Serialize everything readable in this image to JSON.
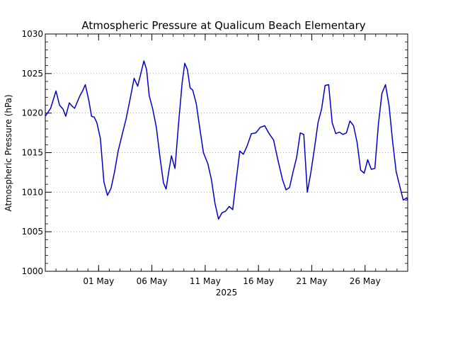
{
  "chart_data": {
    "type": "line",
    "title": "Atmospheric Pressure at Qualicum Beach Elementary",
    "xlabel": "2025",
    "ylabel": "Atmospheric Pressure (hPa)",
    "xlim": [
      "2025-04-26",
      "2025-05-30"
    ],
    "ylim": [
      1000,
      1030
    ],
    "yticks": [
      1000,
      1005,
      1010,
      1015,
      1020,
      1025,
      1030
    ],
    "xtick_dates": [
      "2025-05-01",
      "2025-05-06",
      "2025-05-11",
      "2025-05-16",
      "2025-05-21",
      "2025-05-26"
    ],
    "xtick_labels": [
      "01 May",
      "06 May",
      "11 May",
      "16 May",
      "21 May",
      "26 May"
    ],
    "grid": "horizontal-dotted",
    "line_color": "#0000cc",
    "series": [
      {
        "x": [
          "2025-04-26 00:00",
          "2025-04-26 12:00",
          "2025-04-27 00:00",
          "2025-04-27 08:00",
          "2025-04-27 16:00",
          "2025-04-27 22:00",
          "2025-04-28 06:00",
          "2025-04-28 12:00",
          "2025-04-28 18:00",
          "2025-04-29 06:00",
          "2025-04-29 12:00",
          "2025-04-29 18:00",
          "2025-04-30 02:00",
          "2025-04-30 08:00",
          "2025-04-30 14:00",
          "2025-04-30 20:00",
          "2025-05-01 04:00",
          "2025-05-01 12:00",
          "2025-05-01 20:00",
          "2025-05-02 04:00",
          "2025-05-02 12:00",
          "2025-05-02 20:00",
          "2025-05-03 06:00",
          "2025-05-03 14:00",
          "2025-05-03 22:00",
          "2025-05-04 08:00",
          "2025-05-04 16:00",
          "2025-05-05 00:00",
          "2025-05-05 06:00",
          "2025-05-05 12:00",
          "2025-05-05 18:00",
          "2025-05-06 02:00",
          "2025-05-06 10:00",
          "2025-05-06 18:00",
          "2025-05-07 02:00",
          "2025-05-07 08:00",
          "2025-05-07 14:00",
          "2025-05-07 20:00",
          "2025-05-08 04:00",
          "2025-05-08 12:00",
          "2025-05-08 20:00",
          "2025-05-09 02:00",
          "2025-05-09 08:00",
          "2025-05-09 14:00",
          "2025-05-09 20:00",
          "2025-05-10 04:00",
          "2025-05-10 12:00",
          "2025-05-10 20:00",
          "2025-05-11 06:00",
          "2025-05-11 14:00",
          "2025-05-11 22:00",
          "2025-05-12 06:00",
          "2025-05-12 14:00",
          "2025-05-12 22:00",
          "2025-05-13 06:00",
          "2025-05-13 14:00",
          "2025-05-13 22:00",
          "2025-05-14 06:00",
          "2025-05-14 14:00",
          "2025-05-14 22:00",
          "2025-05-15 08:00",
          "2025-05-15 18:00",
          "2025-05-16 04:00",
          "2025-05-16 14:00",
          "2025-05-17 00:00",
          "2025-05-17 10:00",
          "2025-05-17 20:00",
          "2025-05-18 06:00",
          "2025-05-18 14:00",
          "2025-05-18 22:00",
          "2025-05-19 06:00",
          "2025-05-19 14:00",
          "2025-05-19 22:00",
          "2025-05-20 06:00",
          "2025-05-20 14:00",
          "2025-05-20 22:00",
          "2025-05-21 06:00",
          "2025-05-21 14:00",
          "2025-05-21 22:00",
          "2025-05-22 06:00",
          "2025-05-22 14:00",
          "2025-05-22 22:00",
          "2025-05-23 06:00",
          "2025-05-23 14:00",
          "2025-05-23 22:00",
          "2025-05-24 06:00",
          "2025-05-24 14:00",
          "2025-05-24 22:00",
          "2025-05-25 06:00",
          "2025-05-25 14:00",
          "2025-05-25 22:00",
          "2025-05-26 06:00",
          "2025-05-26 14:00",
          "2025-05-26 22:00",
          "2025-05-27 06:00",
          "2025-05-27 14:00",
          "2025-05-27 22:00",
          "2025-05-28 06:00",
          "2025-05-28 14:00",
          "2025-05-28 22:00",
          "2025-05-29 06:00",
          "2025-05-29 14:00",
          "2025-05-29 22:00",
          "2025-05-30 00:00"
        ],
        "y": [
          1019.6,
          1020.6,
          1022.8,
          1021.0,
          1020.5,
          1019.6,
          1021.3,
          1020.9,
          1020.6,
          1022.2,
          1022.8,
          1023.6,
          1021.6,
          1019.6,
          1019.5,
          1018.8,
          1016.8,
          1011.3,
          1009.6,
          1010.5,
          1012.6,
          1015.2,
          1017.5,
          1019.3,
          1021.5,
          1024.4,
          1023.4,
          1025.2,
          1026.6,
          1025.5,
          1022.2,
          1020.5,
          1018.2,
          1014.5,
          1011.2,
          1010.4,
          1012.6,
          1014.6,
          1013.0,
          1018.6,
          1023.8,
          1026.3,
          1025.5,
          1023.2,
          1022.9,
          1021.2,
          1018.0,
          1015.0,
          1013.6,
          1011.6,
          1008.6,
          1006.6,
          1007.4,
          1007.6,
          1008.2,
          1007.8,
          1011.6,
          1015.2,
          1014.8,
          1015.8,
          1017.4,
          1017.5,
          1018.2,
          1018.4,
          1017.4,
          1016.6,
          1014.0,
          1011.6,
          1010.3,
          1010.6,
          1012.6,
          1014.4,
          1017.5,
          1017.3,
          1010.0,
          1012.5,
          1015.5,
          1018.8,
          1020.5,
          1023.5,
          1023.6,
          1018.8,
          1017.4,
          1017.6,
          1017.3,
          1017.5,
          1019.0,
          1018.4,
          1016.3,
          1012.8,
          1012.4,
          1014.1,
          1012.9,
          1013.0,
          1018.6,
          1022.5,
          1023.6,
          1021.0,
          1016.4,
          1012.6,
          1010.8,
          1009.0,
          1009.3,
          1009.0
        ]
      }
    ]
  }
}
